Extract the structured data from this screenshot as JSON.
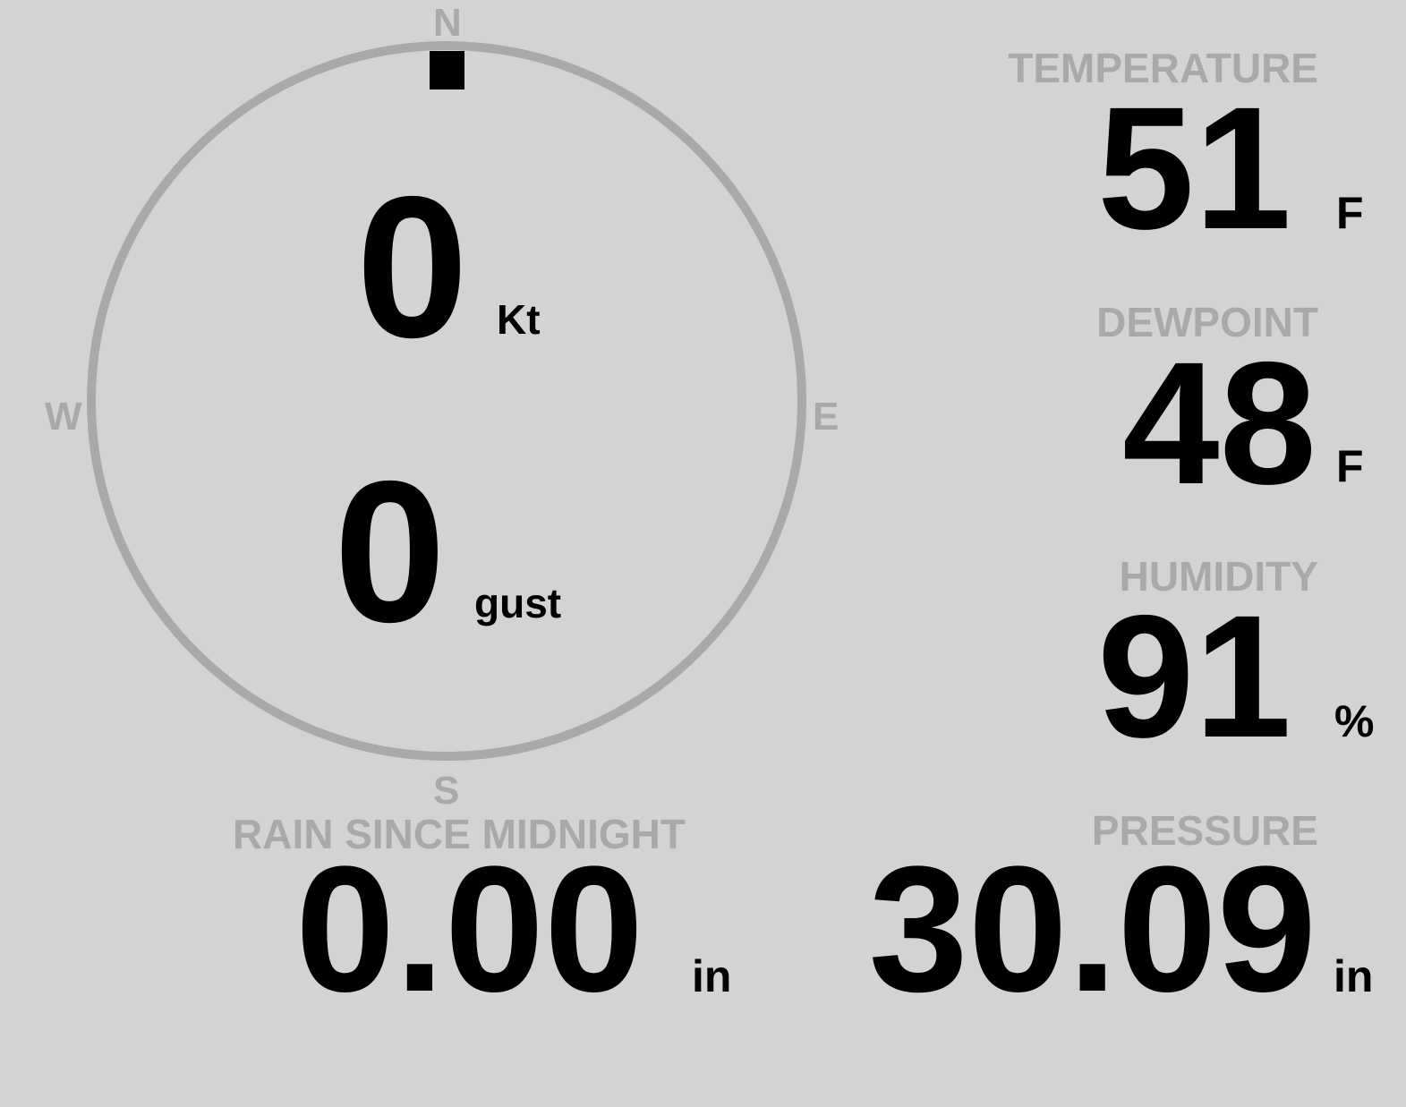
{
  "wind": {
    "direction_deg": 0,
    "compass": {
      "north": "N",
      "east": "E",
      "south": "S",
      "west": "W"
    },
    "speed": "0",
    "speed_unit": "Kt",
    "gust": "0",
    "gust_unit": "gust"
  },
  "temperature": {
    "label": "TEMPERATURE",
    "value": "51",
    "unit": "F"
  },
  "dewpoint": {
    "label": "DEWPOINT",
    "value": "48",
    "unit": "F"
  },
  "humidity": {
    "label": "HUMIDITY",
    "value": "91",
    "unit": "%"
  },
  "rain": {
    "label": "RAIN SINCE MIDNIGHT",
    "value": "0.00",
    "unit": "in"
  },
  "pressure": {
    "label": "PRESSURE",
    "value": "30.09",
    "unit": "in"
  },
  "colors": {
    "background": "#d3d3d3",
    "label": "#a9a9a9",
    "value": "#000000"
  }
}
